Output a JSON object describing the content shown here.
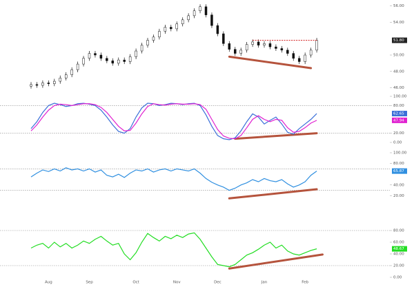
{
  "chart_data": [
    {
      "type": "candlestick",
      "ylim": [
        45.8,
        56.3
      ],
      "yticks": [
        {
          "value": 46,
          "label": "46.00"
        },
        {
          "value": 48,
          "label": "48.00"
        },
        {
          "value": 50,
          "label": "50.00"
        },
        {
          "value": 54,
          "label": "54.00"
        },
        {
          "value": 56,
          "label": "56.00"
        }
      ],
      "up_color": "#ffffff",
      "down_color": "#111111",
      "open": [
        46.2,
        46.4,
        46.3,
        46.6,
        46.5,
        46.8,
        47.2,
        47.6,
        48.2,
        48.9,
        49.6,
        50.2,
        50.0,
        49.6,
        49.3,
        49.0,
        49.4,
        49.2,
        49.8,
        50.5,
        51.2,
        51.8,
        52.2,
        52.9,
        53.4,
        53.2,
        53.8,
        54.3,
        54.8,
        55.4,
        55.9,
        54.9,
        53.6,
        52.6,
        51.4,
        50.7,
        50.2,
        50.6,
        51.3,
        51.6,
        51.2,
        51.4,
        51.0,
        50.8,
        50.6,
        50.2,
        49.6,
        49.2,
        50.0,
        50.6
      ],
      "high": [
        46.7,
        46.7,
        46.9,
        46.9,
        47.1,
        47.5,
        47.9,
        48.5,
        49.2,
        49.9,
        50.5,
        50.5,
        50.3,
        49.9,
        49.6,
        49.7,
        49.7,
        50.1,
        50.8,
        51.5,
        52.1,
        52.5,
        53.2,
        53.7,
        53.7,
        54.1,
        54.6,
        55.1,
        55.7,
        56.2,
        56.2,
        55.2,
        53.9,
        52.9,
        51.7,
        51.0,
        50.9,
        51.6,
        51.9,
        51.9,
        51.7,
        51.7,
        51.3,
        51.1,
        50.9,
        50.5,
        49.9,
        50.3,
        50.9,
        52.1
      ],
      "low": [
        45.9,
        46.0,
        46.0,
        46.2,
        46.2,
        46.5,
        46.9,
        47.3,
        47.9,
        48.6,
        49.3,
        49.7,
        49.3,
        49.0,
        48.7,
        48.7,
        48.9,
        48.9,
        49.5,
        50.2,
        50.9,
        51.5,
        51.9,
        52.6,
        52.9,
        52.9,
        53.5,
        54.0,
        54.5,
        55.1,
        54.6,
        53.3,
        52.3,
        51.1,
        50.4,
        49.9,
        49.9,
        50.3,
        51.0,
        50.9,
        50.9,
        50.7,
        50.5,
        50.3,
        49.9,
        49.3,
        48.9,
        48.9,
        49.7,
        50.3
      ],
      "close": [
        46.4,
        46.3,
        46.6,
        46.5,
        46.8,
        47.2,
        47.6,
        48.2,
        48.9,
        49.6,
        50.2,
        50.0,
        49.6,
        49.3,
        49.0,
        49.4,
        49.2,
        49.8,
        50.5,
        51.2,
        51.8,
        52.2,
        52.9,
        53.4,
        53.2,
        53.8,
        54.3,
        54.8,
        55.4,
        55.9,
        54.9,
        53.6,
        52.6,
        51.4,
        50.7,
        50.2,
        50.6,
        51.3,
        51.6,
        51.2,
        51.4,
        51.0,
        50.8,
        50.6,
        50.2,
        49.6,
        49.2,
        50.0,
        50.6,
        51.8
      ],
      "last_label": {
        "value": 51.8,
        "label": "51.80"
      },
      "resistance": {
        "value": 51.8,
        "x": [
          38,
          49
        ],
        "color": "#cc0000"
      },
      "trendline": {
        "x": [
          34,
          48
        ],
        "y": [
          49.8,
          48.4
        ],
        "color": "#b5533c"
      }
    },
    {
      "type": "line",
      "ylim": [
        0,
        100
      ],
      "yticks": [
        {
          "value": 0,
          "label": "0.00"
        },
        {
          "value": 20,
          "label": "20.00"
        },
        {
          "value": 80,
          "label": "80.00"
        },
        {
          "value": 100,
          "label": "100.00"
        }
      ],
      "reference_lines": [
        80,
        20
      ],
      "series": [
        {
          "color": "#3a6fd8",
          "values": [
            30,
            45,
            65,
            80,
            85,
            82,
            78,
            80,
            84,
            85,
            83,
            80,
            70,
            55,
            38,
            24,
            20,
            30,
            55,
            75,
            85,
            84,
            80,
            82,
            85,
            84,
            82,
            84,
            85,
            80,
            60,
            35,
            15,
            8,
            6,
            10,
            25,
            45,
            62,
            55,
            40,
            48,
            55,
            40,
            22,
            18,
            30,
            40,
            50,
            62.65
          ],
          "last_label": "62.65"
        },
        {
          "color": "#e020d0",
          "values": [
            25,
            38,
            55,
            70,
            80,
            83,
            82,
            80,
            82,
            84,
            84,
            82,
            76,
            65,
            50,
            35,
            25,
            26,
            42,
            62,
            78,
            84,
            82,
            81,
            83,
            84,
            83,
            83,
            84,
            82,
            72,
            50,
            28,
            14,
            9,
            8,
            15,
            32,
            50,
            58,
            50,
            45,
            50,
            48,
            32,
            22,
            24,
            32,
            42,
            47.94
          ],
          "last_label": "47.94"
        }
      ],
      "trendline": {
        "x": [
          35,
          49
        ],
        "y": [
          8,
          20
        ],
        "color": "#b5533c"
      }
    },
    {
      "type": "line",
      "ylim": [
        0,
        100
      ],
      "yticks": [
        {
          "value": 20,
          "label": "20.00"
        },
        {
          "value": 40,
          "label": "40.00"
        },
        {
          "value": 80,
          "label": "80.00"
        },
        {
          "value": 100,
          "label": "100.00"
        }
      ],
      "reference_lines": [
        70,
        30
      ],
      "series": [
        {
          "color": "#2f8fe0",
          "values": [
            55,
            62,
            68,
            65,
            70,
            66,
            72,
            68,
            70,
            66,
            70,
            64,
            68,
            58,
            55,
            60,
            54,
            62,
            68,
            66,
            70,
            64,
            68,
            70,
            66,
            70,
            68,
            66,
            70,
            62,
            52,
            45,
            40,
            36,
            30,
            34,
            40,
            44,
            50,
            46,
            52,
            48,
            46,
            50,
            42,
            36,
            40,
            46,
            58,
            65.87
          ],
          "last_label": "65.87"
        }
      ],
      "trendline": {
        "x": [
          34,
          49
        ],
        "y": [
          15,
          32
        ],
        "color": "#b5533c"
      }
    },
    {
      "type": "line",
      "ylim": [
        0,
        100
      ],
      "yticks": [
        {
          "value": 0,
          "label": "0.00"
        },
        {
          "value": 20,
          "label": "20.00"
        },
        {
          "value": 40,
          "label": "40.00"
        },
        {
          "value": 60,
          "label": "60.00"
        },
        {
          "value": 80,
          "label": "80.00"
        }
      ],
      "reference_lines": [
        80,
        20
      ],
      "categories": [
        null,
        null,
        null,
        "Aug",
        null,
        null,
        null,
        null,
        null,
        null,
        "Sep",
        null,
        null,
        null,
        null,
        null,
        null,
        null,
        "Oct",
        null,
        null,
        null,
        null,
        null,
        null,
        "Nov",
        null,
        null,
        null,
        null,
        null,
        null,
        "Dec",
        null,
        null,
        null,
        null,
        null,
        null,
        null,
        "Jan",
        null,
        null,
        null,
        null,
        null,
        null,
        "Feb",
        null,
        null
      ],
      "series": [
        {
          "color": "#22dd22",
          "values": [
            50,
            55,
            58,
            50,
            60,
            52,
            58,
            50,
            55,
            62,
            58,
            65,
            70,
            62,
            55,
            58,
            40,
            30,
            42,
            60,
            75,
            68,
            62,
            70,
            66,
            72,
            68,
            74,
            76,
            65,
            50,
            35,
            22,
            20,
            18,
            22,
            30,
            38,
            42,
            48,
            55,
            60,
            50,
            55,
            45,
            40,
            38,
            42,
            46,
            48.67
          ],
          "last_label": "48.67"
        }
      ],
      "trendline": {
        "x": [
          34,
          50
        ],
        "y": [
          15,
          39
        ],
        "color": "#b5533c"
      }
    }
  ]
}
